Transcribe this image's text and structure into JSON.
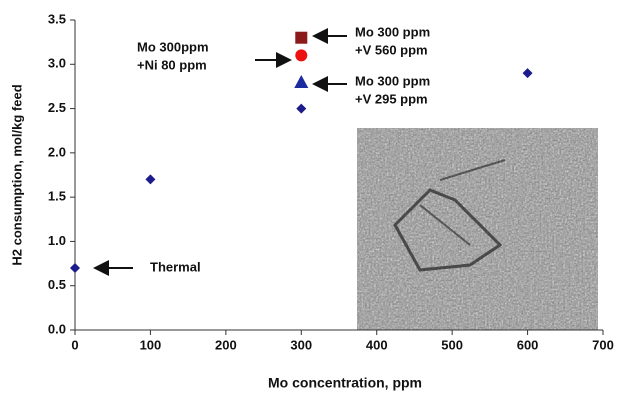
{
  "chart_data": {
    "type": "scatter",
    "xlabel": "Mo concentration, ppm",
    "ylabel": "H2 consumption, mol/kg feed",
    "xlim": [
      0,
      700
    ],
    "xticks": [
      0,
      100,
      200,
      300,
      400,
      500,
      600,
      700
    ],
    "ylim": [
      0,
      3.5
    ],
    "yticks": [
      {
        "value": 0,
        "label": "0.0"
      },
      0.5,
      {
        "value": 1,
        "label": "1.0"
      },
      1.5,
      {
        "value": 2,
        "label": "2.0"
      },
      2.5,
      {
        "value": 3,
        "label": "3.0"
      },
      3.5
    ],
    "series": [
      {
        "marker": "diamond",
        "color": "#1c1c8c",
        "x": [
          0,
          100,
          300,
          600
        ],
        "values": [
          0.7,
          1.7,
          2.5,
          2.9
        ]
      },
      {
        "marker": "square",
        "color": "#8b1a1a",
        "x": [
          300
        ],
        "values": [
          3.3
        ]
      },
      {
        "marker": "circle",
        "color": "#ee1111",
        "x": [
          300
        ],
        "values": [
          3.1
        ]
      },
      {
        "marker": "triangle",
        "color": "#1c2aa0",
        "x": [
          300
        ],
        "values": [
          2.8
        ]
      }
    ],
    "annotations": [
      {
        "lines": [
          "Thermal"
        ]
      },
      {
        "lines": [
          "Mo 300 ppm",
          "+V 560 ppm"
        ]
      },
      {
        "lines": [
          "Mo 300ppm",
          "+Ni 80 ppm"
        ]
      },
      {
        "lines": [
          "Mo 300 ppm",
          "+V 295 ppm"
        ]
      }
    ]
  }
}
